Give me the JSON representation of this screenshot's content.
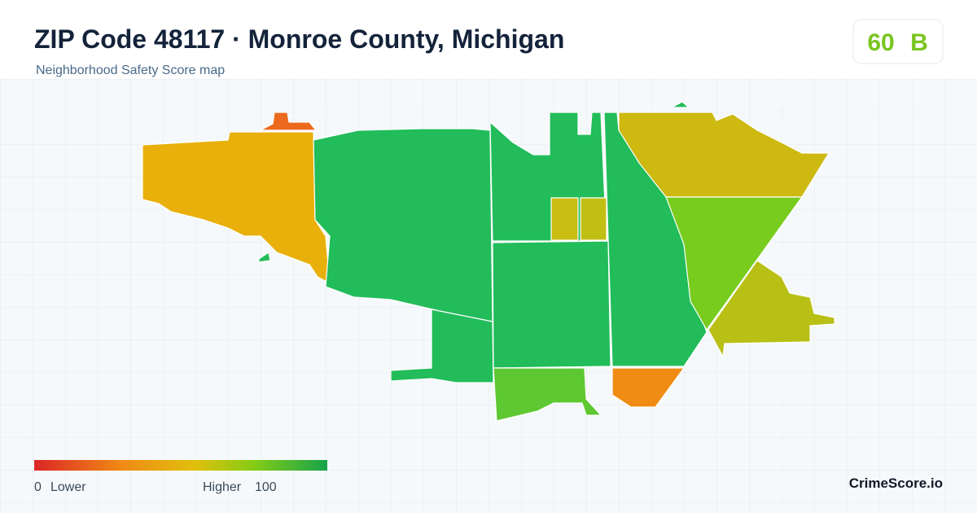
{
  "header": {
    "title": "ZIP Code 48117 · Monroe County, Michigan",
    "subtitle": "Neighborhood Safety Score map"
  },
  "score": {
    "value": 60,
    "grade": "B"
  },
  "legend": {
    "min": 0,
    "min_label": "Lower",
    "max_label": "Higher",
    "max": 100
  },
  "brand": "CrimeScore.io"
}
